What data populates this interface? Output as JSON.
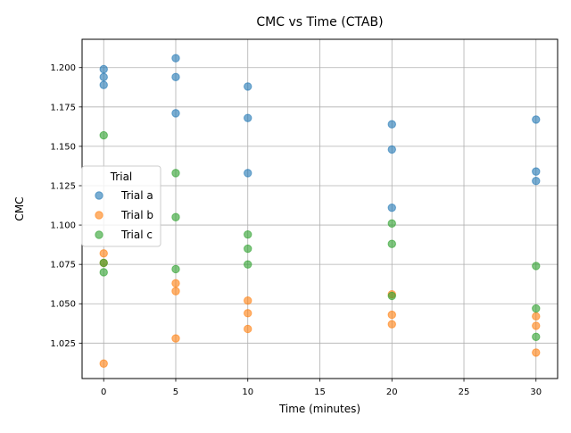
{
  "chart_data": {
    "type": "scatter",
    "title": "CMC vs Time (CTAB)",
    "xlabel": "Time (minutes)",
    "ylabel": "CMC",
    "xlim": [
      -1.5,
      31.5
    ],
    "ylim": [
      1.0025,
      1.218
    ],
    "x_ticks": [
      0,
      5,
      10,
      15,
      20,
      25,
      30
    ],
    "x_tick_labels": [
      "0",
      "5",
      "10",
      "15",
      "20",
      "25",
      "30"
    ],
    "y_ticks": [
      1.025,
      1.05,
      1.075,
      1.1,
      1.125,
      1.15,
      1.175,
      1.2
    ],
    "y_tick_labels": [
      "1.025",
      "1.050",
      "1.075",
      "1.100",
      "1.125",
      "1.150",
      "1.175",
      "1.200"
    ],
    "grid": true,
    "legend": {
      "title": "Trial",
      "placement": "center-left"
    },
    "series": [
      {
        "name": "Trial a",
        "color": "#1f77b4",
        "points": [
          [
            0,
            1.199
          ],
          [
            0,
            1.194
          ],
          [
            0,
            1.189
          ],
          [
            5,
            1.206
          ],
          [
            5,
            1.194
          ],
          [
            5,
            1.171
          ],
          [
            10,
            1.188
          ],
          [
            10,
            1.168
          ],
          [
            10,
            1.133
          ],
          [
            20,
            1.164
          ],
          [
            20,
            1.148
          ],
          [
            20,
            1.111
          ],
          [
            30,
            1.167
          ],
          [
            30,
            1.134
          ],
          [
            30,
            1.128
          ]
        ]
      },
      {
        "name": "Trial b",
        "color": "#ff7f0e",
        "points": [
          [
            0,
            1.082
          ],
          [
            0,
            1.076
          ],
          [
            0,
            1.012
          ],
          [
            5,
            1.063
          ],
          [
            5,
            1.058
          ],
          [
            5,
            1.028
          ],
          [
            10,
            1.052
          ],
          [
            10,
            1.044
          ],
          [
            10,
            1.034
          ],
          [
            20,
            1.056
          ],
          [
            20,
            1.043
          ],
          [
            20,
            1.037
          ],
          [
            30,
            1.042
          ],
          [
            30,
            1.036
          ],
          [
            30,
            1.019
          ]
        ]
      },
      {
        "name": "Trial c",
        "color": "#2ca02c",
        "points": [
          [
            0,
            1.157
          ],
          [
            0,
            1.076
          ],
          [
            0,
            1.07
          ],
          [
            5,
            1.133
          ],
          [
            5,
            1.105
          ],
          [
            5,
            1.072
          ],
          [
            10,
            1.094
          ],
          [
            10,
            1.085
          ],
          [
            10,
            1.075
          ],
          [
            20,
            1.101
          ],
          [
            20,
            1.088
          ],
          [
            20,
            1.055
          ],
          [
            30,
            1.074
          ],
          [
            30,
            1.047
          ],
          [
            30,
            1.029
          ]
        ]
      }
    ]
  }
}
